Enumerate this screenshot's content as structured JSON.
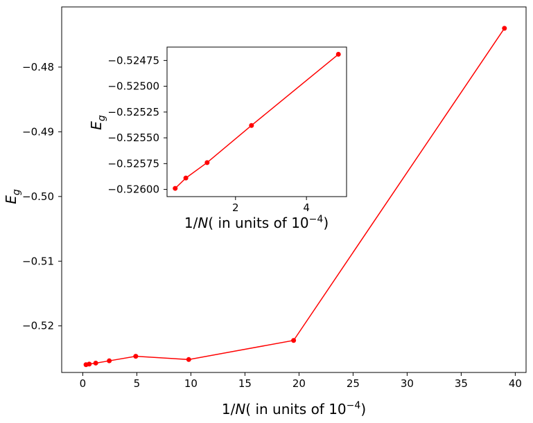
{
  "chart_data": [
    {
      "type": "line",
      "panel": "main",
      "xlabel": "1/N( in units of 10^-4)",
      "xlabel_parts": {
        "pre": "1/",
        "var": "N",
        "mid": "( in units of 10",
        "sup": "−4",
        "post": ")"
      },
      "ylabel": "E_g",
      "ylabel_parts": {
        "var": "E",
        "sub": "g"
      },
      "xlim": [
        -1.95,
        41.0
      ],
      "ylim": [
        -0.5272,
        -0.4707
      ],
      "xticks": [
        0,
        5,
        10,
        15,
        20,
        25,
        30,
        35,
        40
      ],
      "xtick_labels": [
        "0",
        "5",
        "10",
        "15",
        "20",
        "25",
        "30",
        "35",
        "40"
      ],
      "yticks": [
        -0.52,
        -0.51,
        -0.5,
        -0.49,
        -0.48
      ],
      "ytick_labels": [
        "−0.52",
        "−0.51",
        "−0.50",
        "−0.49",
        "−0.48"
      ],
      "color": "#ff0000",
      "grid": false,
      "series": [
        {
          "x": [
            0.3,
            0.6,
            1.2,
            2.45,
            4.9,
            9.8,
            19.5,
            39.0
          ],
          "y": [
            -0.526,
            -0.5259,
            -0.52575,
            -0.5254,
            -0.5247,
            -0.5252,
            -0.52225,
            -0.474
          ]
        }
      ]
    },
    {
      "type": "line",
      "panel": "inset",
      "xlabel": "1/N( in units of 10^-4)",
      "xlabel_parts": {
        "pre": "1/",
        "var": "N",
        "mid": "( in units of 10",
        "sup": "−4",
        "post": ")"
      },
      "ylabel": "E_g",
      "ylabel_parts": {
        "var": "E",
        "sub": "g"
      },
      "xlim": [
        0.07,
        5.13
      ],
      "ylim": [
        -0.52607,
        -0.52462
      ],
      "xticks": [
        2,
        4
      ],
      "xtick_labels": [
        "2",
        "4"
      ],
      "yticks": [
        -0.526,
        -0.52575,
        -0.5255,
        -0.52525,
        -0.525,
        -0.52475
      ],
      "ytick_labels": [
        "−0.52600",
        "−0.52575",
        "−0.52550",
        "−0.52525",
        "−0.52500",
        "−0.52475"
      ],
      "color": "#ff0000",
      "grid": false,
      "series": [
        {
          "x": [
            0.3,
            0.6,
            1.2,
            2.45,
            4.9
          ],
          "y": [
            -0.52599,
            -0.52589,
            -0.52574,
            -0.52538,
            -0.52469
          ]
        }
      ]
    }
  ]
}
